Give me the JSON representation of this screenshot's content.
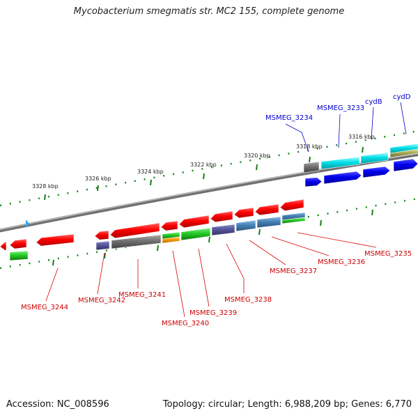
{
  "title": "Mycobacterium smegmatis str. MC2 155, complete genome",
  "footer": {
    "accession": "Accession: NC_008596",
    "summary": "Topology: circular; Length: 6,988,209 bp; Genes: 6,770"
  },
  "colors": {
    "forward_cds": "#ff0000",
    "reverse_cds": "#ff0000",
    "gene_blue": "#0000ee",
    "gene_cyan": "#00e5ee",
    "gene_gray": "#777777",
    "gene_green": "#22cc22",
    "gene_slate": "#555599",
    "gene_steel": "#4682b4",
    "label_red": "#cc0000",
    "label_blue": "#0000cc",
    "tick_green": "#006600"
  },
  "ticks": [
    {
      "label": "3328 kbp"
    },
    {
      "label": "3326 kbp"
    },
    {
      "label": "3324 kbp"
    },
    {
      "label": "3322 kbp"
    },
    {
      "label": "3320 kbp"
    },
    {
      "label": "3318 kbp"
    },
    {
      "label": "3316 kbp"
    }
  ],
  "genes_blue": [
    {
      "label": "MSMEG_3234"
    },
    {
      "label": "MSMEG_3233"
    },
    {
      "label": "cydB"
    },
    {
      "label": "cydD"
    }
  ],
  "genes_red": [
    {
      "label": "MSMEG_3244"
    },
    {
      "label": "MSMEG_3242"
    },
    {
      "label": "MSMEG_3241"
    },
    {
      "label": "MSMEG_3240"
    },
    {
      "label": "MSMEG_3239"
    },
    {
      "label": "MSMEG_3238"
    },
    {
      "label": "MSMEG_3237"
    },
    {
      "label": "MSMEG_3236"
    },
    {
      "label": "MSMEG_3235"
    }
  ]
}
